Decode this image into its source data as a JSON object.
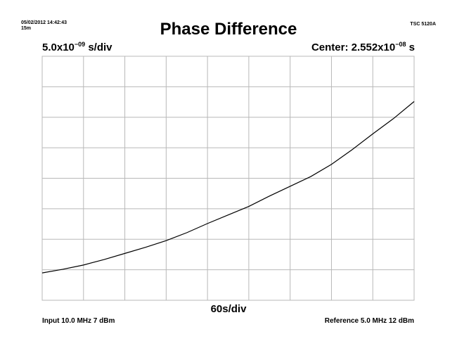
{
  "header": {
    "timestamp": "05/02/2012 14:42:43",
    "duration": "15m",
    "instrument": "TSC 5120A",
    "title": "Phase Difference",
    "y_scale_prefix": "5.0x10",
    "y_scale_exp": "−09",
    "y_scale_suffix": " s/div",
    "center_prefix": "Center: 2.552x10",
    "center_exp": "−08",
    "center_suffix": " s"
  },
  "footer": {
    "x_scale": "60s/div",
    "input": "Input 10.0 MHz 7 dBm",
    "reference": "Reference 5.0 MHz 12 dBm"
  },
  "chart_data": {
    "type": "line",
    "title": "Phase Difference",
    "xlabel": "60s/div",
    "x_unit": "s",
    "y_unit": "s",
    "x_divisions": 9,
    "y_divisions": 8,
    "xlim": [
      0,
      540
    ],
    "ylim": [
      5.52e-09,
      4.552e-08
    ],
    "grid": true,
    "series": [
      {
        "x": [
          0,
          30,
          60,
          90,
          120,
          150,
          180,
          210,
          240,
          270,
          300,
          330,
          360,
          390,
          420,
          450,
          480,
          510,
          540
        ],
        "values": [
          1e-08,
          1.06e-08,
          1.13e-08,
          1.22e-08,
          1.32e-08,
          1.42e-08,
          1.53e-08,
          1.66e-08,
          1.81e-08,
          1.95e-08,
          2.09e-08,
          2.26e-08,
          2.42e-08,
          2.58e-08,
          2.78e-08,
          3.02e-08,
          3.28e-08,
          3.53e-08,
          3.81e-08
        ]
      }
    ]
  }
}
